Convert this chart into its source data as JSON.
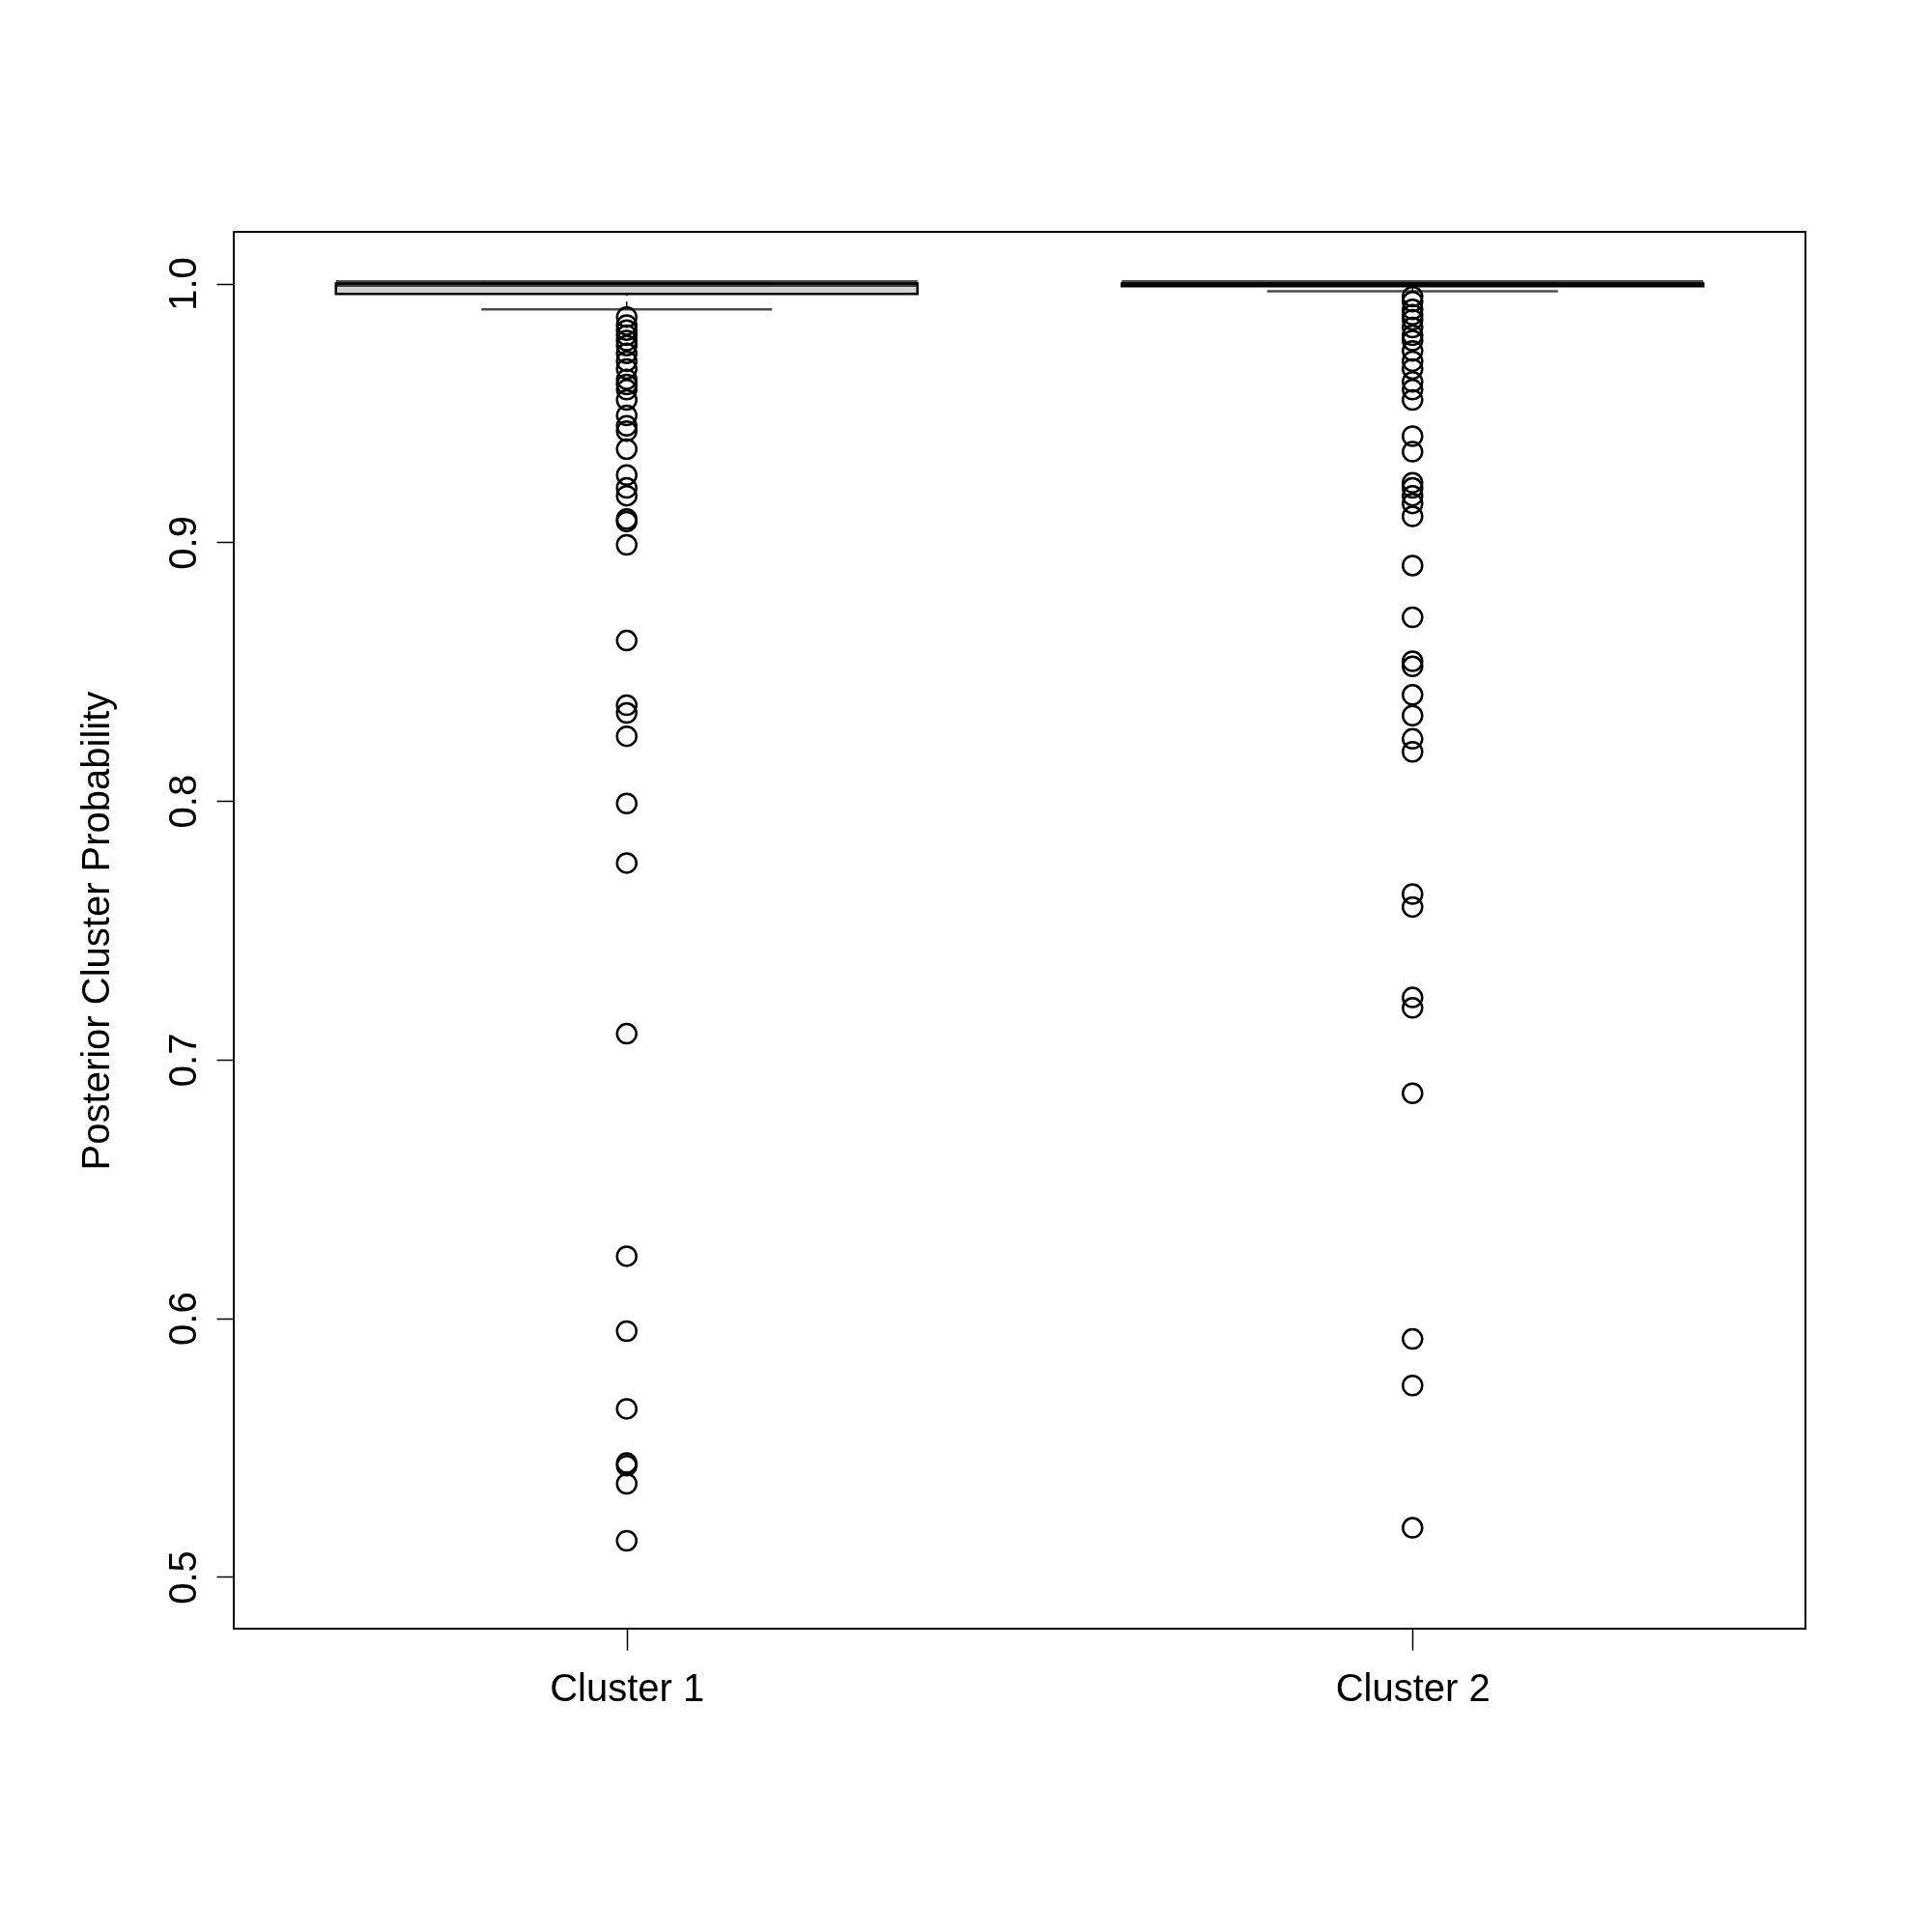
{
  "chart_data": {
    "type": "box",
    "ylabel": "Posterior Cluster Probability",
    "categories": [
      "Cluster 1",
      "Cluster 2"
    ],
    "ylim": [
      0.48,
      1.02
    ],
    "yticks": [
      0.5,
      0.6,
      0.7,
      0.8,
      0.9,
      {
        "value": 1.0,
        "label": "1.0"
      }
    ],
    "grid": false,
    "series": [
      {
        "color": "#d3d3d3",
        "boxes": [
          {
            "low": 0.99,
            "q1": 0.996,
            "median": 1.0,
            "q3": 1.0,
            "high": 1.0,
            "outliers": [
              0.987,
              0.984,
              0.982,
              0.98,
              0.978,
              0.976,
              0.973,
              0.97,
              0.967,
              0.963,
              0.961,
              0.959,
              0.955,
              0.949,
              0.945,
              0.943,
              0.936,
              0.926,
              0.921,
              0.918,
              0.909,
              0.908,
              0.899,
              0.862,
              0.837,
              0.834,
              0.825,
              0.799,
              0.776,
              0.71,
              0.624,
              0.595,
              0.565,
              0.544,
              0.543,
              0.536,
              0.514
            ]
          },
          {
            "low": 0.997,
            "q1": 0.999,
            "median": 1.0,
            "q3": 1.0,
            "high": 1.0,
            "outliers": [
              0.995,
              0.993,
              0.99,
              0.988,
              0.986,
              0.983,
              0.98,
              0.978,
              0.974,
              0.97,
              0.967,
              0.962,
              0.959,
              0.955,
              0.941,
              0.935,
              0.923,
              0.921,
              0.918,
              0.915,
              0.91,
              0.891,
              0.871,
              0.854,
              0.852,
              0.841,
              0.833,
              0.824,
              0.819,
              0.764,
              0.759,
              0.724,
              0.72,
              0.687,
              0.592,
              0.574,
              0.519
            ]
          }
        ]
      }
    ]
  }
}
